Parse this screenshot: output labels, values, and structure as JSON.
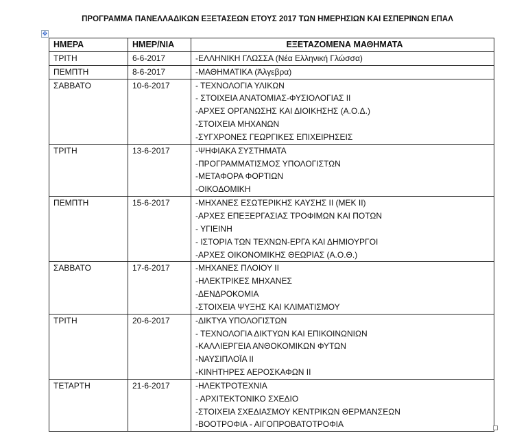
{
  "title": "ΠΡΟΓΡΑΜΜΑ  ΠΑΝΕΛΛΑΔΙΚΩΝ ΕΞΕΤΑΣΕΩΝ  ΕΤΟΥΣ 2017 ΤΩΝ ΗΜΕΡΗΣΙΩΝ ΚΑΙ ΕΣΠΕΡΙΝΩΝ ΕΠΑΛ",
  "table": {
    "headers": [
      "ΗΜΕΡΑ",
      "ΗΜΕΡ/ΝΙΑ",
      "ΕΞΕΤΑΖΟΜΕΝΑ ΜΑΘΗΜΑΤΑ"
    ],
    "rows": [
      {
        "day": "ΤΡΙΤΗ",
        "date": "6-6-2017",
        "subjects": [
          "-ΕΛΛΗΝΙΚΗ ΓΛΩΣΣΑ (Νέα Ελληνική Γλώσσα)"
        ]
      },
      {
        "day": "ΠΕΜΠΤΗ",
        "date": "8-6-2017",
        "subjects": [
          "-ΜΑΘΗΜΑΤΙΚΑ (Άλγεβρα)"
        ]
      },
      {
        "day": "ΣΑΒΒΑΤΟ",
        "date": "10-6-2017",
        "subjects": [
          "- ΤΕΧΝΟΛΟΓΙΑ ΥΛΙΚΩΝ",
          "- ΣΤΟΙΧΕΙΑ ΑΝΑΤΟΜΙΑΣ-ΦΥΣΙΟΛΟΓΙΑΣ ΙΙ",
          "-ΑΡΧΕΣ ΟΡΓΑΝΩΣΗΣ ΚΑΙ ΔΙΟΙΚΗΣΗΣ (Α.Ο.Δ.)",
          "-ΣΤΟΙΧΕΙΑ ΜΗΧΑΝΩΝ",
          "-ΣΥΓΧΡΟΝΕΣ ΓΕΩΡΓΙΚΕΣ ΕΠΙΧΕΙΡΗΣΕΙΣ"
        ]
      },
      {
        "day": "ΤΡΙΤΗ",
        "date": "13-6-2017",
        "subjects": [
          "-ΨΗΦΙΑΚΑ ΣΥΣΤΗΜΑΤΑ",
          "-ΠΡΟΓΡΑΜΜΑΤΙΣΜΟΣ ΥΠΟΛΟΓΙΣΤΩΝ",
          "-ΜΕΤΑΦΟΡΑ ΦΟΡΤΙΩΝ",
          "-ΟΙΚΟΔΟΜΙΚΗ"
        ]
      },
      {
        "day": "ΠΕΜΠΤΗ",
        "date": "15-6-2017",
        "subjects": [
          "-ΜΗΧΑΝΕΣ ΕΣΩΤΕΡΙΚΗΣ ΚΑΥΣΗΣ ΙΙ (ΜΕΚ ΙΙ)",
          "-ΑΡΧΕΣ ΕΠΕΞΕΡΓΑΣΙΑΣ ΤΡΟΦΙΜΩΝ ΚΑΙ ΠΟΤΩΝ",
          "- ΥΓΙΕΙΝΗ",
          "- ΙΣΤΟΡΙΑ ΤΩΝ ΤΕΧΝΩΝ-ΕΡΓΑ ΚΑΙ ΔΗΜΙΟΥΡΓΟΙ",
          "-ΑΡΧΕΣ ΟΙΚΟΝΟΜΙΚΗΣ ΘΕΩΡΙΑΣ (Α.Ο.Θ.)"
        ]
      },
      {
        "day": "ΣΑΒΒΑΤΟ",
        "date": "17-6-2017",
        "subjects": [
          "-ΜΗΧΑΝΕΣ ΠΛΟΙΟΥ ΙΙ",
          "-ΗΛΕΚΤΡΙΚΕΣ ΜΗΧΑΝΕΣ",
          "-ΔΕΝΔΡΟΚΟΜΙΑ",
          "-ΣΤΟΙΧΕΙΑ ΨΥΞΗΣ ΚΑΙ ΚΛΙΜΑΤΙΣΜΟΥ"
        ]
      },
      {
        "day": "ΤΡΙΤΗ",
        "date": "20-6-2017",
        "subjects": [
          "-ΔΙΚΤΥΑ ΥΠΟΛΟΓΙΣΤΩΝ",
          "- ΤΕΧΝΟΛΟΓΙΑ ΔΙΚΤΥΩΝ ΚΑΙ ΕΠΙΚΟΙΝΩΝΙΩΝ",
          "-ΚΑΛΛΙΕΡΓΕΙΑ ΑΝΘΟΚΟΜΙΚΩΝ ΦΥΤΩΝ",
          "-ΝΑΥΣΙΠΛΟΪΑ ΙΙ",
          "-ΚΙΝΗΤΗΡΕΣ ΑΕΡΟΣΚΑΦΩΝ ΙΙ"
        ]
      },
      {
        "day": "ΤΕΤΑΡΤΗ",
        "date": "21-6-2017",
        "subjects": [
          "-ΗΛΕΚΤΡΟΤΕΧΝΙΑ",
          "- ΑΡΧΙΤΕΚΤΟΝΙΚΟ ΣΧΕΔΙΟ",
          "-ΣΤΟΙΧΕΙΑ ΣΧΕΔΙΑΣΜΟΥ ΚΕΝΤΡΙΚΩΝ ΘΕΡΜΑΝΣΕΩΝ",
          "-ΒΟΟΤΡΟΦΙΑ - ΑΙΓΟΠΡΟΒΑΤΟΤΡΟΦΙΑ"
        ]
      }
    ]
  },
  "icons": {
    "move_handle": "move-arrows-icon",
    "resize_handle": "table-resize-icon"
  }
}
